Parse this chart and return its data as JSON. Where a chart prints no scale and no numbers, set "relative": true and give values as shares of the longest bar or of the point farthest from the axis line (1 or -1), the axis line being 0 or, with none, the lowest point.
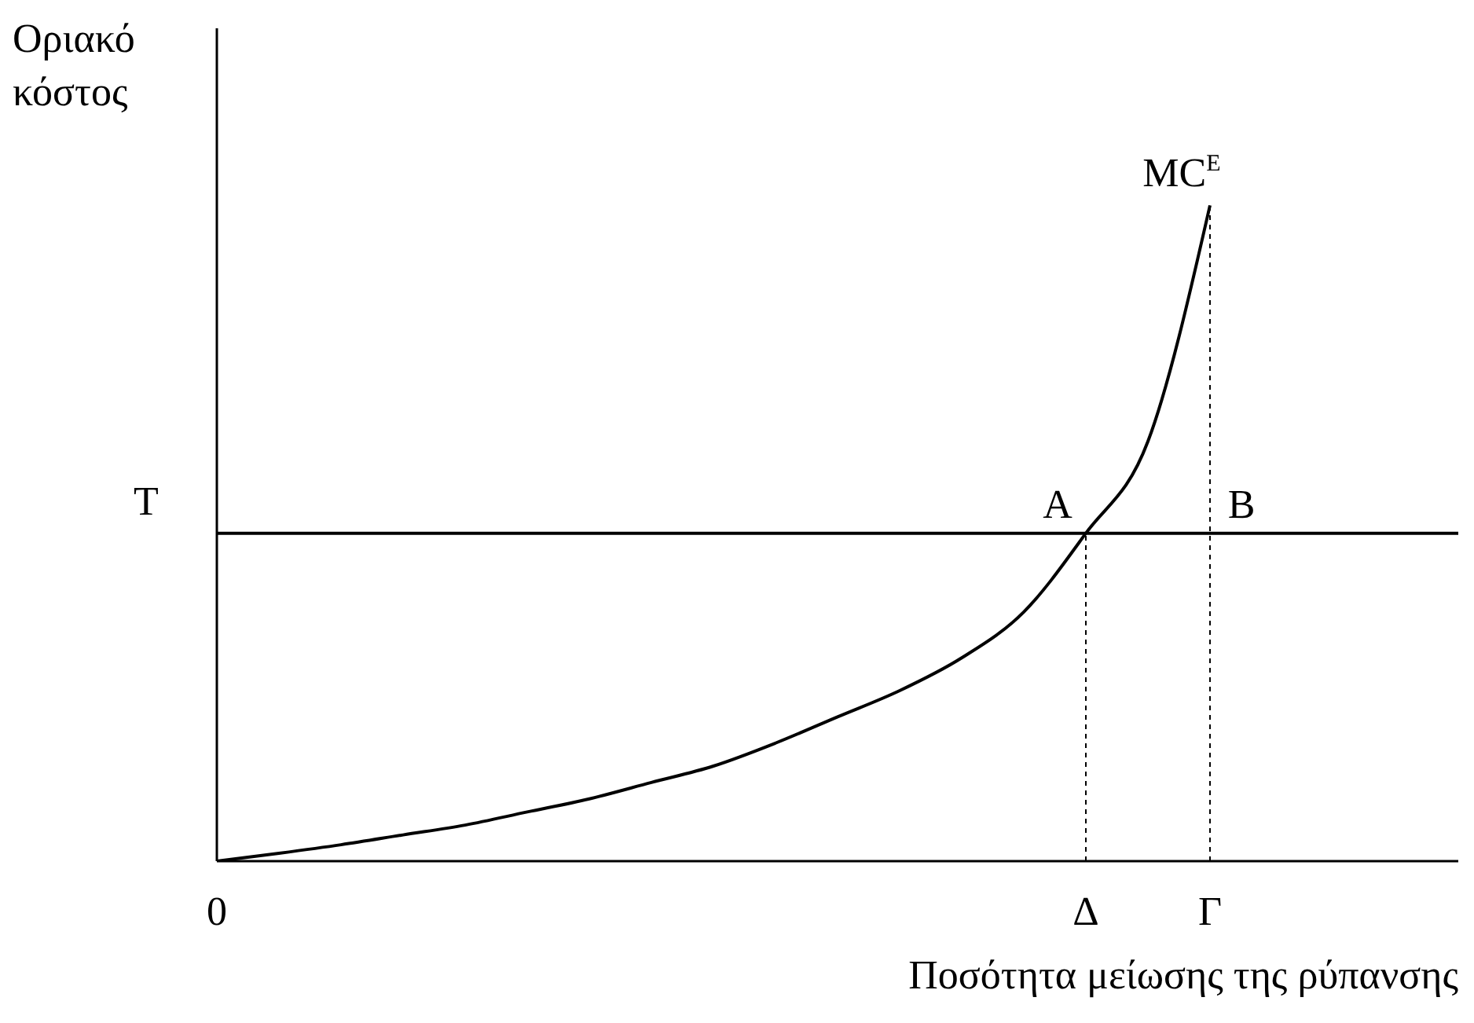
{
  "chart_data": {
    "type": "line",
    "relative": true,
    "xlabel": "Ποσότητα μείωσης της ρύπανσης",
    "ylabel": "Οριακό κόστος",
    "categories": [
      "0",
      null,
      null,
      null,
      null,
      null,
      null,
      null,
      null,
      null,
      null,
      null,
      null,
      null,
      "Δ",
      null,
      "Γ",
      null,
      null,
      null,
      null
    ],
    "series": [
      {
        "color": "#000000",
        "values": [
          0,
          0.012,
          0.025,
          0.04,
          0.055,
          0.075,
          0.095,
          0.12,
          0.145,
          0.18,
          0.22,
          0.26,
          0.31,
          0.38,
          0.5,
          0.64,
          1,
          null,
          null,
          null,
          null
        ]
      }
    ],
    "ref_lines": [
      {
        "axis": "y",
        "value": 0.5,
        "label": "T",
        "color": "#000000",
        "line_style": "solid"
      },
      {
        "axis": "x",
        "value": "Δ",
        "label": null,
        "color": "#000000",
        "line_style": "dotted"
      },
      {
        "axis": "x",
        "value": "Γ",
        "label": null,
        "color": "#000000",
        "line_style": "dotted"
      }
    ],
    "annotations": [
      {
        "text": "A",
        "x": "Δ",
        "y": 0.5
      },
      {
        "text": "B",
        "x": "Γ",
        "y": 0.5
      },
      {
        "text": "MC$^{E}$",
        "x": "Γ",
        "y": 1
      }
    ],
    "marker": "none",
    "line_style": "solid"
  }
}
